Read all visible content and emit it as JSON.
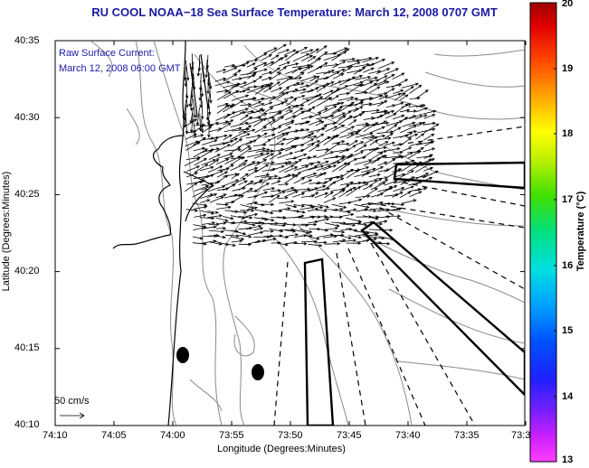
{
  "title": "RU COOL  NOAA−18  Sea Surface Temperature:  March 12, 2008 0707 GMT",
  "annotation": {
    "line1": "Raw Surface Current:",
    "line2": "March 12, 2008 06:00 GMT"
  },
  "scale_label": "50 cm/s",
  "axes": {
    "xlabel": "Longitude (Degrees:Minutes)",
    "ylabel": "Latitude (Degrees:Minutes)",
    "x_ticks": [
      "74:10",
      "74:05",
      "74:00",
      "73:55",
      "73:50",
      "73:45",
      "73:40",
      "73:35",
      "73:3"
    ],
    "y_ticks": [
      "40:35",
      "40:30",
      "40:25",
      "40:20",
      "40:15",
      "40:10"
    ]
  },
  "colorbar": {
    "label": "Temperature (°C)",
    "ticks": [
      "20",
      "19",
      "18",
      "17",
      "16",
      "15",
      "14",
      "13"
    ],
    "min": 13,
    "max": 20
  },
  "colors": {
    "title": "#1a1aa0",
    "annotation": "#1a1aa0"
  }
}
